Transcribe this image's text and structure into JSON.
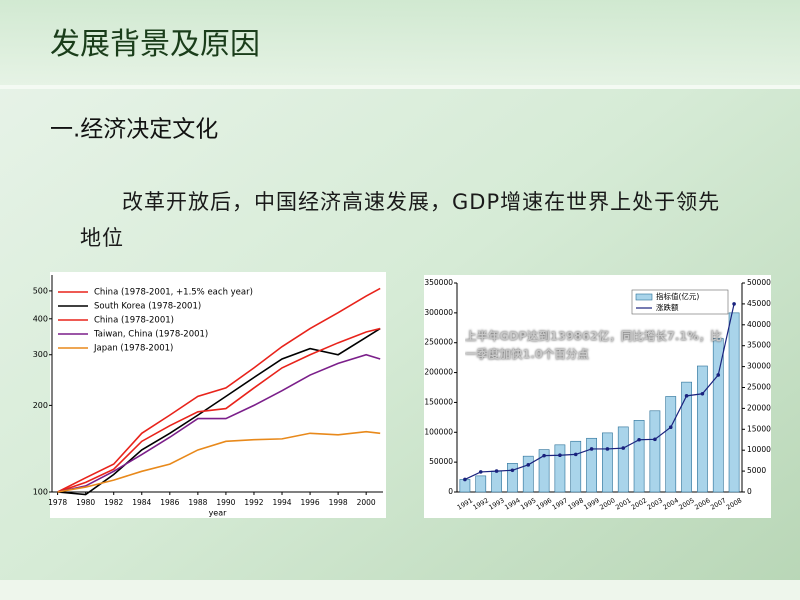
{
  "title": "发展背景及原因",
  "heading": "一.经济决定文化",
  "body": "改革开放后，中国经济高速发展，GDP增速在世界上处于领先地位",
  "chart_data": [
    {
      "type": "line",
      "x_label": "year",
      "log_scale": true,
      "grid": false,
      "legend": "upper-left",
      "x": [
        1978,
        1980,
        1982,
        1984,
        1986,
        1988,
        1990,
        1992,
        1994,
        1996,
        1998,
        2000,
        2001
      ],
      "xlim": [
        1977.6,
        2001.2
      ],
      "xticks": [
        1978,
        1980,
        1982,
        1984,
        1986,
        1988,
        1990,
        1992,
        1994,
        1996,
        1998,
        2000
      ],
      "ylim": [
        100,
        550
      ],
      "yticks": [
        100,
        200,
        300,
        400,
        500
      ],
      "series": [
        {
          "name": "China (1978-2001, +1.5% each year)",
          "color": "#e8231b",
          "values": [
            100,
            112,
            125,
            160,
            185,
            215,
            230,
            270,
            320,
            370,
            420,
            480,
            510
          ]
        },
        {
          "name": "South Korea (1978-2001)",
          "color": "#000000",
          "values": [
            100,
            98,
            115,
            140,
            160,
            185,
            215,
            250,
            290,
            315,
            300,
            345,
            370
          ]
        },
        {
          "name": "China (1978-2001)",
          "color": "#e8231b",
          "values": [
            100,
            108,
            120,
            150,
            170,
            190,
            195,
            230,
            270,
            300,
            330,
            360,
            370
          ]
        },
        {
          "name": "Taiwan, China (1978-2001)",
          "color": "#7b1f8a",
          "values": [
            100,
            105,
            118,
            135,
            155,
            180,
            180,
            200,
            225,
            255,
            280,
            300,
            290
          ]
        },
        {
          "name": "Japan (1978-2001)",
          "color": "#e8891b",
          "values": [
            100,
            104,
            110,
            118,
            125,
            140,
            150,
            152,
            153,
            160,
            158,
            162,
            160
          ]
        }
      ]
    },
    {
      "type": "bar-line",
      "grid": false,
      "legend": "upper-right",
      "annotation": "上半年GDP达到139862亿，同比增长7.1%，比一季度加快1.0个百分点",
      "categories": [
        "1991",
        "1992",
        "1993",
        "1994",
        "1995",
        "1996",
        "1997",
        "1998",
        "1999",
        "2000",
        "2001",
        "2002",
        "2003",
        "2004",
        "2005",
        "2006",
        "2007",
        "2008"
      ],
      "ylim": [
        0,
        350000
      ],
      "yticks": [
        0,
        50000,
        100000,
        150000,
        200000,
        250000,
        300000,
        350000
      ],
      "y2lim": [
        0,
        50000
      ],
      "y2ticks": [
        0,
        5000,
        10000,
        15000,
        20000,
        25000,
        30000,
        35000,
        40000,
        45000,
        50000
      ],
      "series": [
        {
          "name": "指标值(亿元)",
          "color": "#a9d4ea",
          "values": [
            21000,
            27000,
            35000,
            48000,
            60000,
            71000,
            79000,
            85000,
            90000,
            99000,
            109000,
            120000,
            136000,
            160000,
            184000,
            211000,
            257000,
            300000
          ]
        },
        {
          "name": "涨跌额",
          "color": "#1a237e",
          "axis": "y2",
          "values": [
            3000,
            4800,
            5000,
            5200,
            6500,
            8700,
            8800,
            9000,
            10300,
            10300,
            10500,
            12500,
            12600,
            15500,
            23000,
            23500,
            28000,
            45000
          ]
        }
      ]
    }
  ]
}
